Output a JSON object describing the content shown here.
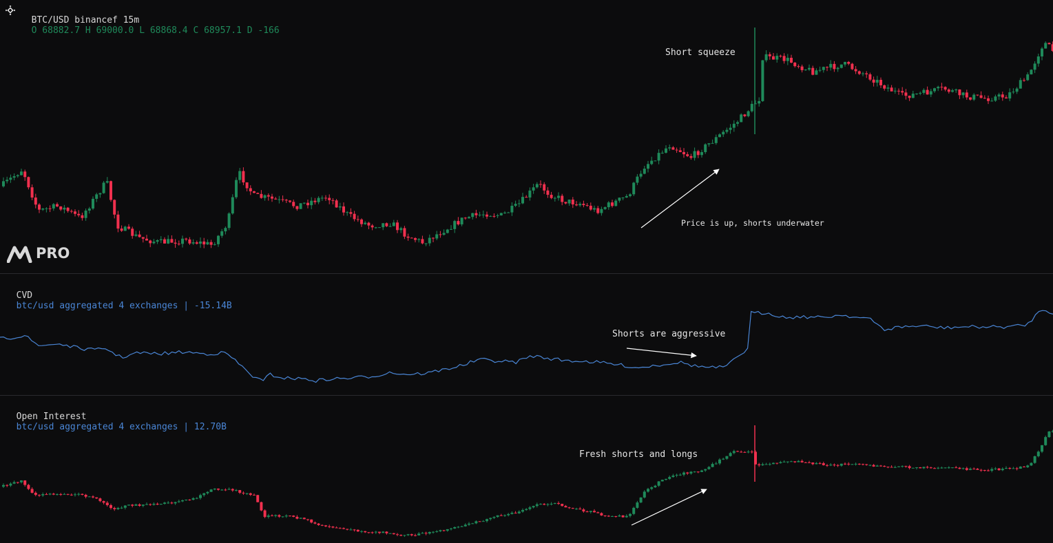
{
  "header": {
    "symbol": "BTC/USD binancef 15m",
    "ohlc_text": "O 68882.7 H 69000.0 L 68868.4 C 68957.1 D -166"
  },
  "cvd": {
    "label": "CVD",
    "source": "btc/usd aggregated 4 exchanges | -15.14B"
  },
  "oi": {
    "label": "Open Interest",
    "source": "btc/usd aggregated 4 exchanges | 12.70B"
  },
  "annotations": {
    "short_squeeze": "Short squeeze",
    "price_up": "Price is up, shorts underwater",
    "shorts_aggressive": "Shorts are aggressive",
    "fresh_positions": "Fresh shorts and longs"
  },
  "logo": {
    "text": "PRO",
    "icon": "m-logo-icon"
  },
  "colors": {
    "background": "#0c0c0d",
    "up": "#1f8a5a",
    "down": "#f0304e",
    "cvd_line": "#4a86d6",
    "divider": "#2a2a2e"
  },
  "chart_data": [
    {
      "type": "candlestick",
      "title": "BTC/USD binancef 15m",
      "last": {
        "open": 68882.7,
        "high": 69000.0,
        "low": 68868.4,
        "close": 68957.1,
        "change": -166
      },
      "close_path": [
        [
          0,
          0.35
        ],
        [
          0.02,
          0.42
        ],
        [
          0.035,
          0.25
        ],
        [
          0.055,
          0.27
        ],
        [
          0.075,
          0.22
        ],
        [
          0.1,
          0.37
        ],
        [
          0.11,
          0.19
        ],
        [
          0.13,
          0.14
        ],
        [
          0.15,
          0.12
        ],
        [
          0.175,
          0.13
        ],
        [
          0.2,
          0.11
        ],
        [
          0.215,
          0.2
        ],
        [
          0.225,
          0.41
        ],
        [
          0.24,
          0.31
        ],
        [
          0.255,
          0.3
        ],
        [
          0.28,
          0.27
        ],
        [
          0.31,
          0.31
        ],
        [
          0.33,
          0.23
        ],
        [
          0.35,
          0.19
        ],
        [
          0.37,
          0.2
        ],
        [
          0.385,
          0.15
        ],
        [
          0.4,
          0.12
        ],
        [
          0.42,
          0.17
        ],
        [
          0.44,
          0.22
        ],
        [
          0.46,
          0.24
        ],
        [
          0.475,
          0.23
        ],
        [
          0.49,
          0.27
        ],
        [
          0.51,
          0.36
        ],
        [
          0.52,
          0.32
        ],
        [
          0.535,
          0.29
        ],
        [
          0.55,
          0.28
        ],
        [
          0.565,
          0.25
        ],
        [
          0.585,
          0.29
        ],
        [
          0.595,
          0.31
        ],
        [
          0.61,
          0.43
        ],
        [
          0.635,
          0.52
        ],
        [
          0.655,
          0.47
        ],
        [
          0.68,
          0.55
        ],
        [
          0.7,
          0.62
        ],
        [
          0.72,
          0.71
        ],
        [
          0.72,
          0.88
        ],
        [
          0.745,
          0.87
        ],
        [
          0.77,
          0.82
        ],
        [
          0.8,
          0.85
        ],
        [
          0.82,
          0.81
        ],
        [
          0.835,
          0.77
        ],
        [
          0.855,
          0.72
        ],
        [
          0.875,
          0.73
        ],
        [
          0.895,
          0.75
        ],
        [
          0.915,
          0.72
        ],
        [
          0.935,
          0.71
        ],
        [
          0.955,
          0.72
        ],
        [
          0.975,
          0.8
        ],
        [
          0.99,
          0.94
        ],
        [
          1,
          0.9
        ]
      ]
    },
    {
      "type": "line",
      "title": "CVD btc/usd aggregated 4 exchanges | -15.14B",
      "series": [
        {
          "name": "CVD",
          "points": [
            [
              0,
              0.5
            ],
            [
              0.015,
              0.52
            ],
            [
              0.025,
              0.55
            ],
            [
              0.035,
              0.42
            ],
            [
              0.055,
              0.45
            ],
            [
              0.075,
              0.4
            ],
            [
              0.09,
              0.38
            ],
            [
              0.1,
              0.4
            ],
            [
              0.115,
              0.3
            ],
            [
              0.13,
              0.35
            ],
            [
              0.15,
              0.34
            ],
            [
              0.175,
              0.36
            ],
            [
              0.195,
              0.34
            ],
            [
              0.215,
              0.35
            ],
            [
              0.225,
              0.25
            ],
            [
              0.24,
              0.1
            ],
            [
              0.25,
              0.04
            ],
            [
              0.255,
              0.12
            ],
            [
              0.27,
              0.08
            ],
            [
              0.29,
              0.07
            ],
            [
              0.3,
              0.05
            ],
            [
              0.315,
              0.07
            ],
            [
              0.335,
              0.08
            ],
            [
              0.355,
              0.1
            ],
            [
              0.37,
              0.14
            ],
            [
              0.385,
              0.12
            ],
            [
              0.405,
              0.13
            ],
            [
              0.425,
              0.18
            ],
            [
              0.44,
              0.22
            ],
            [
              0.455,
              0.28
            ],
            [
              0.475,
              0.26
            ],
            [
              0.49,
              0.25
            ],
            [
              0.505,
              0.32
            ],
            [
              0.515,
              0.3
            ],
            [
              0.535,
              0.27
            ],
            [
              0.555,
              0.26
            ],
            [
              0.575,
              0.24
            ],
            [
              0.595,
              0.21
            ],
            [
              0.605,
              0.19
            ],
            [
              0.625,
              0.22
            ],
            [
              0.645,
              0.25
            ],
            [
              0.66,
              0.21
            ],
            [
              0.675,
              0.19
            ],
            [
              0.69,
              0.2
            ],
            [
              0.7,
              0.31
            ],
            [
              0.71,
              0.39
            ],
            [
              0.71,
              0.78
            ],
            [
              0.73,
              0.78
            ],
            [
              0.745,
              0.73
            ],
            [
              0.76,
              0.74
            ],
            [
              0.78,
              0.73
            ],
            [
              0.8,
              0.76
            ],
            [
              0.815,
              0.73
            ],
            [
              0.825,
              0.72
            ],
            [
              0.84,
              0.6
            ],
            [
              0.855,
              0.63
            ],
            [
              0.875,
              0.64
            ],
            [
              0.895,
              0.62
            ],
            [
              0.915,
              0.63
            ],
            [
              0.935,
              0.63
            ],
            [
              0.955,
              0.63
            ],
            [
              0.975,
              0.65
            ],
            [
              0.985,
              0.77
            ],
            [
              0.99,
              0.82
            ],
            [
              1,
              0.78
            ]
          ]
        }
      ]
    },
    {
      "type": "candlestick",
      "title": "Open Interest btc/usd aggregated 4 exchanges | 12.70B",
      "close_path": [
        [
          0,
          0.45
        ],
        [
          0.02,
          0.5
        ],
        [
          0.03,
          0.38
        ],
        [
          0.055,
          0.39
        ],
        [
          0.075,
          0.38
        ],
        [
          0.09,
          0.35
        ],
        [
          0.105,
          0.26
        ],
        [
          0.12,
          0.29
        ],
        [
          0.14,
          0.3
        ],
        [
          0.165,
          0.32
        ],
        [
          0.185,
          0.35
        ],
        [
          0.2,
          0.43
        ],
        [
          0.215,
          0.43
        ],
        [
          0.24,
          0.38
        ],
        [
          0.25,
          0.2
        ],
        [
          0.27,
          0.21
        ],
        [
          0.29,
          0.17
        ],
        [
          0.3,
          0.13
        ],
        [
          0.315,
          0.11
        ],
        [
          0.33,
          0.09
        ],
        [
          0.345,
          0.07
        ],
        [
          0.36,
          0.07
        ],
        [
          0.38,
          0.04
        ],
        [
          0.395,
          0.05
        ],
        [
          0.41,
          0.07
        ],
        [
          0.43,
          0.1
        ],
        [
          0.45,
          0.15
        ],
        [
          0.47,
          0.2
        ],
        [
          0.49,
          0.23
        ],
        [
          0.51,
          0.3
        ],
        [
          0.525,
          0.31
        ],
        [
          0.54,
          0.27
        ],
        [
          0.56,
          0.24
        ],
        [
          0.575,
          0.2
        ],
        [
          0.595,
          0.2
        ],
        [
          0.61,
          0.4
        ],
        [
          0.63,
          0.52
        ],
        [
          0.645,
          0.56
        ],
        [
          0.665,
          0.58
        ],
        [
          0.68,
          0.66
        ],
        [
          0.695,
          0.74
        ],
        [
          0.715,
          0.75
        ],
        [
          0.715,
          0.63
        ],
        [
          0.74,
          0.65
        ],
        [
          0.76,
          0.66
        ],
        [
          0.785,
          0.63
        ],
        [
          0.81,
          0.64
        ],
        [
          0.83,
          0.62
        ],
        [
          0.85,
          0.62
        ],
        [
          0.87,
          0.61
        ],
        [
          0.89,
          0.61
        ],
        [
          0.91,
          0.6
        ],
        [
          0.935,
          0.59
        ],
        [
          0.955,
          0.6
        ],
        [
          0.975,
          0.62
        ],
        [
          0.985,
          0.74
        ],
        [
          0.993,
          0.9
        ],
        [
          1,
          0.92
        ]
      ]
    }
  ]
}
